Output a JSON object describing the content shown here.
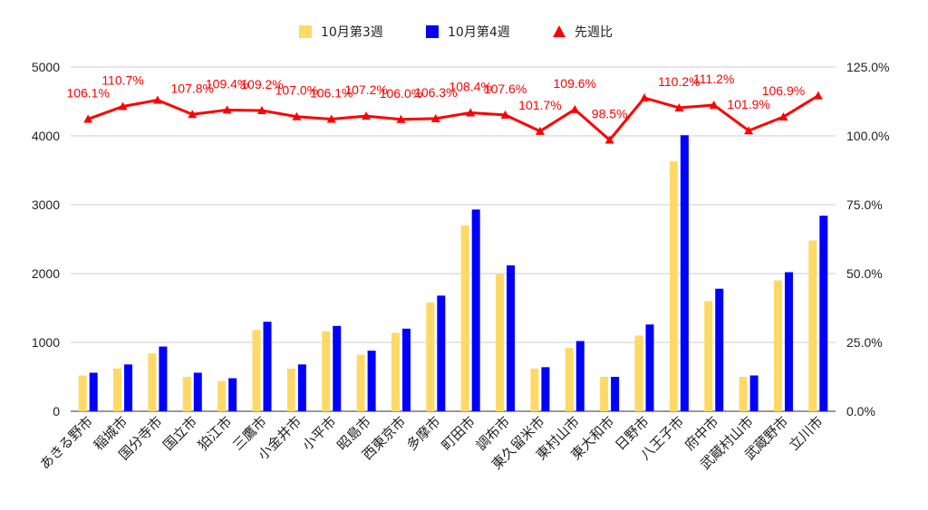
{
  "chart_data": {
    "type": "bar",
    "categories": [
      "あきる野市",
      "稲城市",
      "国分寺市",
      "国立市",
      "狛江市",
      "三鷹市",
      "小金井市",
      "小平市",
      "昭島市",
      "西東京市",
      "多摩市",
      "町田市",
      "調布市",
      "東久留米市",
      "東村山市",
      "東大和市",
      "日野市",
      "八王子市",
      "府中市",
      "武蔵村山市",
      "武蔵野市",
      "立川市"
    ],
    "series": [
      {
        "name": "10月第3週",
        "color": "#ffd966",
        "axis": "left",
        "values": [
          520,
          620,
          840,
          500,
          440,
          1180,
          620,
          1160,
          820,
          1140,
          1580,
          2700,
          1990,
          620,
          920,
          500,
          1100,
          3630,
          1600,
          500,
          1900,
          2480
        ]
      },
      {
        "name": "10月第4週",
        "color": "#0000ff",
        "axis": "left",
        "values": [
          560,
          680,
          940,
          560,
          480,
          1300,
          680,
          1240,
          880,
          1200,
          1680,
          2930,
          2120,
          640,
          1020,
          500,
          1260,
          4010,
          1780,
          520,
          2020,
          2840
        ]
      },
      {
        "name": "先週比",
        "color": "#ff0000",
        "axis": "right",
        "marker": "triangle",
        "values": [
          106.1,
          110.7,
          113.0,
          107.8,
          109.4,
          109.2,
          107.0,
          106.1,
          107.2,
          106.0,
          106.3,
          108.4,
          107.6,
          101.7,
          109.6,
          98.5,
          113.8,
          110.2,
          111.2,
          101.9,
          106.9,
          114.6
        ],
        "labels": [
          "106.1%",
          "110.7%",
          "",
          "107.8%",
          "109.4%",
          "109.2%",
          "107.0%",
          "106.1%",
          "107.2%",
          "106.0%",
          "106.3%",
          "108.4%",
          "107.6%",
          "101.7%",
          "109.6%",
          "98.5%",
          "",
          "110.2%",
          "111.2%",
          "101.9%",
          "106.9%",
          ""
        ]
      }
    ],
    "y_left": {
      "min": 0,
      "max": 5000,
      "ticks": [
        "0",
        "1000",
        "2000",
        "3000",
        "4000",
        "5000"
      ]
    },
    "y_right": {
      "min": 0,
      "max": 125,
      "ticks": [
        "0.0%",
        "25.0%",
        "50.0%",
        "75.0%",
        "100.0%",
        "125.0%"
      ]
    },
    "legend_position": "top",
    "grid": true
  }
}
